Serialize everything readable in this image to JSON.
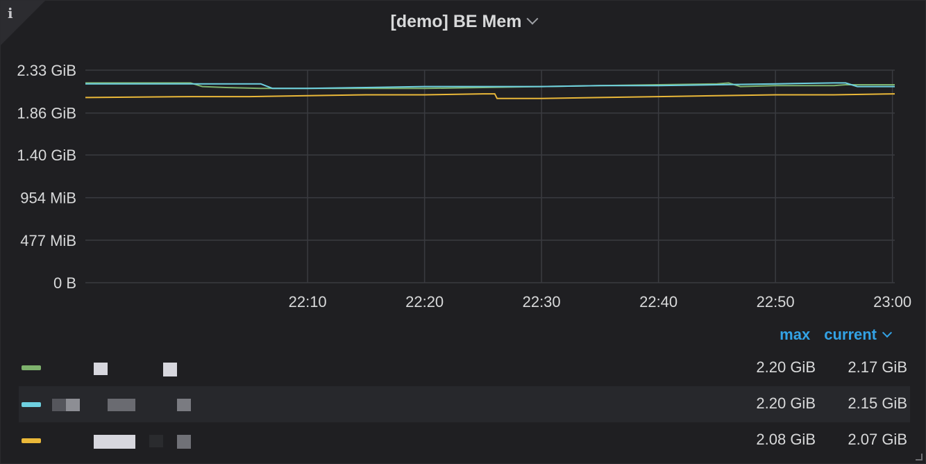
{
  "panel": {
    "title": "[demo] BE Mem",
    "info_icon": "info-icon",
    "menu_icon": "chevron-down-icon"
  },
  "chart_data": {
    "type": "line",
    "title": "[demo] BE Mem",
    "xlabel": "",
    "ylabel": "",
    "y_unit": "GiB",
    "y_ticks": [
      {
        "value": 0,
        "label": "0 B"
      },
      {
        "value": 0.466,
        "label": "477 MiB"
      },
      {
        "value": 0.932,
        "label": "954 MiB"
      },
      {
        "value": 1.4,
        "label": "1.40 GiB"
      },
      {
        "value": 1.86,
        "label": "1.86 GiB"
      },
      {
        "value": 2.33,
        "label": "2.33 GiB"
      }
    ],
    "ylim": [
      0,
      2.33
    ],
    "x_ticks": [
      "22:10",
      "22:20",
      "22:30",
      "22:40",
      "22:50",
      "23:00"
    ],
    "xlim_minutes": [
      -9,
      60.2
    ],
    "grid": true,
    "legend_position": "bottom",
    "series": [
      {
        "color": "#7eb26d",
        "max": "2.20 GiB",
        "current": "2.17 GiB",
        "points": [
          [
            -9,
            2.19
          ],
          [
            0,
            2.19
          ],
          [
            1,
            2.15
          ],
          [
            3,
            2.14
          ],
          [
            6,
            2.13
          ],
          [
            10,
            2.13
          ],
          [
            15,
            2.13
          ],
          [
            20,
            2.13
          ],
          [
            25,
            2.14
          ],
          [
            30,
            2.15
          ],
          [
            35,
            2.16
          ],
          [
            40,
            2.17
          ],
          [
            45,
            2.18
          ],
          [
            46,
            2.19
          ],
          [
            47,
            2.15
          ],
          [
            50,
            2.16
          ],
          [
            55,
            2.16
          ],
          [
            56,
            2.17
          ],
          [
            58,
            2.17
          ],
          [
            60.2,
            2.17
          ]
        ]
      },
      {
        "color": "#6ed0e0",
        "max": "2.20 GiB",
        "current": "2.15 GiB",
        "points": [
          [
            -9,
            2.18
          ],
          [
            0,
            2.18
          ],
          [
            1,
            2.18
          ],
          [
            5,
            2.18
          ],
          [
            6,
            2.18
          ],
          [
            7,
            2.13
          ],
          [
            10,
            2.13
          ],
          [
            15,
            2.14
          ],
          [
            20,
            2.15
          ],
          [
            25,
            2.15
          ],
          [
            30,
            2.15
          ],
          [
            35,
            2.16
          ],
          [
            40,
            2.16
          ],
          [
            45,
            2.17
          ],
          [
            50,
            2.18
          ],
          [
            55,
            2.19
          ],
          [
            56,
            2.19
          ],
          [
            57,
            2.15
          ],
          [
            60.2,
            2.15
          ]
        ]
      },
      {
        "color": "#eab839",
        "max": "2.08 GiB",
        "current": "2.07 GiB",
        "points": [
          [
            -9,
            2.03
          ],
          [
            0,
            2.04
          ],
          [
            5,
            2.04
          ],
          [
            10,
            2.05
          ],
          [
            15,
            2.06
          ],
          [
            20,
            2.06
          ],
          [
            25,
            2.07
          ],
          [
            26,
            2.07
          ],
          [
            26.2,
            2.02
          ],
          [
            30,
            2.02
          ],
          [
            35,
            2.03
          ],
          [
            40,
            2.04
          ],
          [
            45,
            2.05
          ],
          [
            50,
            2.06
          ],
          [
            55,
            2.06
          ],
          [
            60.2,
            2.07
          ]
        ]
      }
    ]
  },
  "legend": {
    "columns": {
      "max": "max",
      "current": "current"
    },
    "sort_icon": "chevron-down-icon",
    "rows": [
      {
        "color": "#7eb26d",
        "max": "2.20 GiB",
        "current": "2.17 GiB"
      },
      {
        "color": "#6ed0e0",
        "max": "2.20 GiB",
        "current": "2.15 GiB"
      },
      {
        "color": "#eab839",
        "max": "2.08 GiB",
        "current": "2.07 GiB"
      }
    ]
  }
}
